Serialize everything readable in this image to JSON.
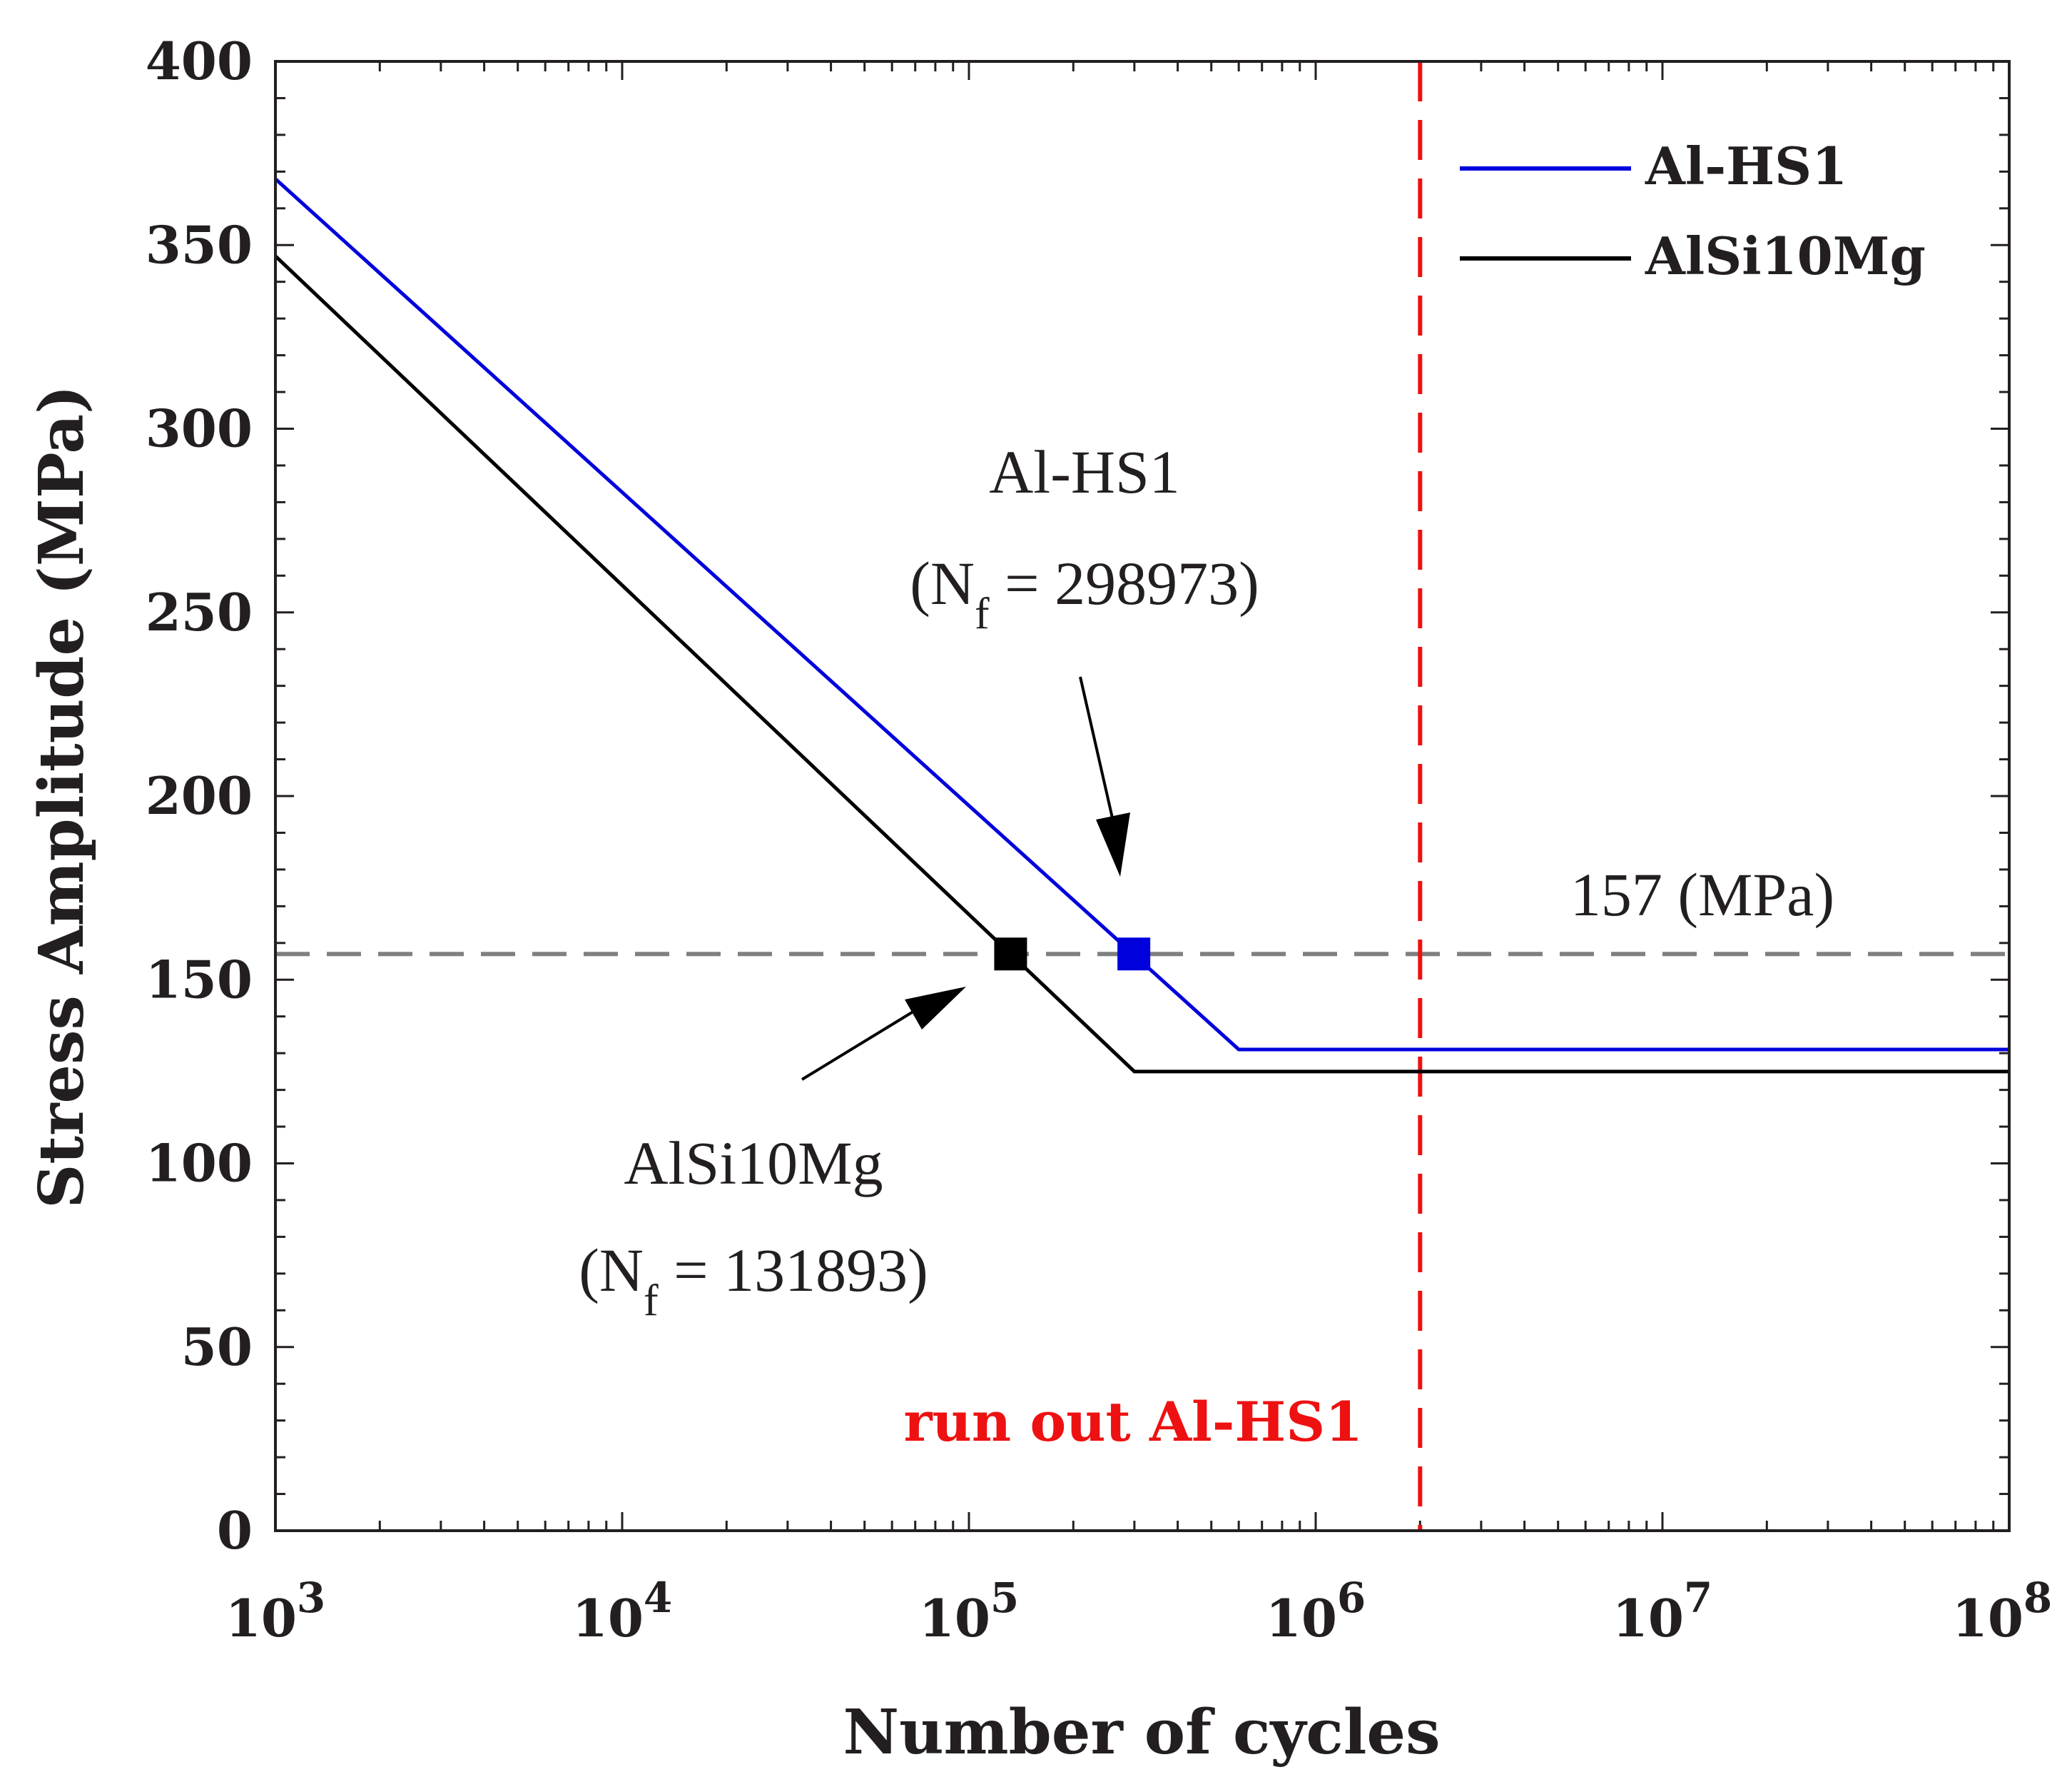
{
  "chart_data": {
    "type": "line",
    "title": "",
    "xlabel": "Number of cycles",
    "ylabel": "Stress Amplitude (MPa)",
    "xscale": "log",
    "xlim": [
      1000,
      100000000
    ],
    "ylim": [
      0,
      400
    ],
    "x_ticks": [
      {
        "base": "10",
        "exp": "3",
        "value": 1000
      },
      {
        "base": "10",
        "exp": "4",
        "value": 10000
      },
      {
        "base": "10",
        "exp": "5",
        "value": 100000
      },
      {
        "base": "10",
        "exp": "6",
        "value": 1000000
      },
      {
        "base": "10",
        "exp": "7",
        "value": 10000000
      },
      {
        "base": "10",
        "exp": "8",
        "value": 100000000
      }
    ],
    "y_ticks": [
      "0",
      "50",
      "100",
      "150",
      "200",
      "250",
      "300",
      "350",
      "400"
    ],
    "series": [
      {
        "name": "Al-HS1",
        "color": "#0000dd",
        "points": [
          [
            1000,
            368
          ],
          [
            600000,
            131
          ],
          [
            100000000,
            131
          ]
        ]
      },
      {
        "name": "AlSi10Mg",
        "color": "#000000",
        "points": [
          [
            1000,
            347
          ],
          [
            300000,
            125
          ],
          [
            100000000,
            125
          ]
        ]
      }
    ],
    "markers": [
      {
        "series": "Al-HS1",
        "x": 298973,
        "y": 157,
        "color": "#0000dd"
      },
      {
        "series": "AlSi10Mg",
        "x": 131893,
        "y": 157,
        "color": "#000000"
      }
    ],
    "reference_lines": [
      {
        "orientation": "horizontal",
        "value": 157,
        "color": "#808080",
        "label": "157 (MPa)"
      },
      {
        "orientation": "vertical",
        "value": 2000000,
        "color": "#ee1111",
        "label": "run out Al-HS1"
      }
    ],
    "annotations": [
      {
        "target": "Al-HS1",
        "name_text": "Al-HS1",
        "prefix": "(N",
        "sub": "f",
        "suffix": " = 298973)"
      },
      {
        "target": "AlSi10Mg",
        "name_text": "AlSi10Mg",
        "prefix": "(N",
        "sub": "f",
        "suffix": " = 131893)"
      }
    ],
    "legend": {
      "position": "top-right",
      "entries": [
        "Al-HS1",
        "AlSi10Mg"
      ]
    },
    "grid": false
  }
}
